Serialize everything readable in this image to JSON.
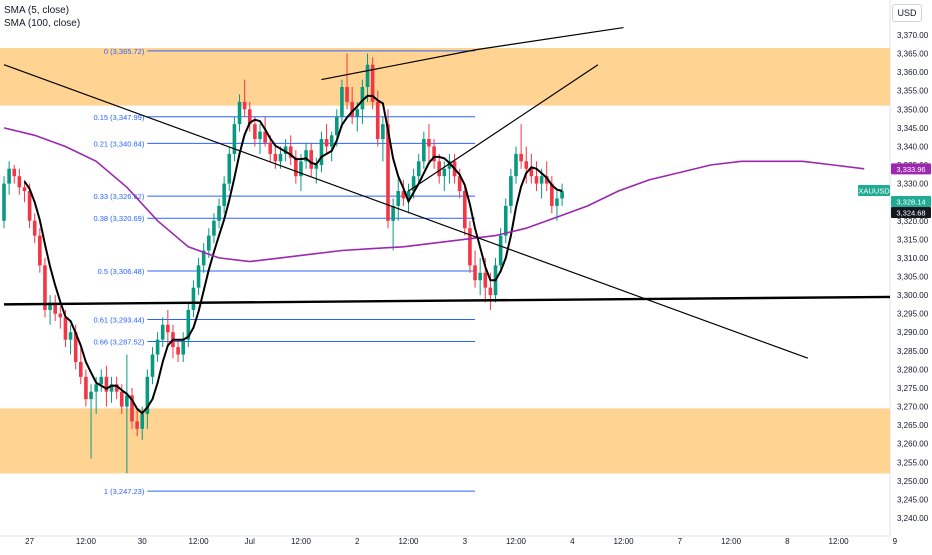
{
  "legend": {
    "sma5": "SMA (5, close)",
    "sma100": "SMA (100, close)"
  },
  "currency": "USD",
  "symbol": "XAUUSD",
  "chart_data": {
    "type": "candlestick",
    "ylim": [
      3238,
      3374
    ],
    "y_ticks": [
      3240,
      3245,
      3250,
      3255,
      3260,
      3265,
      3270,
      3275,
      3280,
      3285,
      3290,
      3295,
      3300,
      3305,
      3310,
      3315,
      3320,
      3325,
      3330,
      3335,
      3340,
      3345,
      3350,
      3355,
      3360,
      3365,
      3370
    ],
    "x_ticks": [
      {
        "label": "27",
        "bar": 5
      },
      {
        "label": "12:00",
        "bar": 16
      },
      {
        "label": "30",
        "bar": 27
      },
      {
        "label": "12:00",
        "bar": 38
      },
      {
        "label": "Jul",
        "bar": 48
      },
      {
        "label": "12:00",
        "bar": 58
      },
      {
        "label": "2",
        "bar": 69
      },
      {
        "label": "12:00",
        "bar": 79
      },
      {
        "label": "3",
        "bar": 90
      },
      {
        "label": "12:00",
        "bar": 100
      },
      {
        "label": "4",
        "bar": 111
      },
      {
        "label": "12:00",
        "bar": 121
      },
      {
        "label": "7",
        "bar": 132
      },
      {
        "label": "12:00",
        "bar": 142
      },
      {
        "label": "8",
        "bar": 153
      },
      {
        "label": "12:00",
        "bar": 163
      },
      {
        "label": "9",
        "bar": 174
      }
    ],
    "price_labels": [
      {
        "text": "3,333.96",
        "value": 3333.96,
        "color": "#9c27b0"
      },
      {
        "text": "XAUUSD",
        "value": 3328.14,
        "color": "#22ab94",
        "name": true
      },
      {
        "text": "3,328.14",
        "value": 3328.14,
        "color": "#22ab94"
      },
      {
        "text": "3,324.68",
        "value": 3324.68,
        "color": "#131722"
      }
    ],
    "fib_levels": [
      {
        "label": "0 (3,365.72)",
        "value": 3365.72
      },
      {
        "label": "0.15 (3,347.99)",
        "value": 3347.99
      },
      {
        "label": "0.21 (3,340.84)",
        "value": 3340.84
      },
      {
        "label": "0.33 (3,326.62)",
        "value": 3326.62
      },
      {
        "label": "0.38 (3,320.69)",
        "value": 3320.69
      },
      {
        "label": "0.5 (3,306.48)",
        "value": 3306.48
      },
      {
        "label": "0.61 (3,293.44)",
        "value": 3293.44
      },
      {
        "label": "0.66 (3,287.52)",
        "value": 3287.52
      },
      {
        "label": "1 (3,247.23)",
        "value": 3247.23
      }
    ],
    "fib_x_range": [
      28,
      92
    ],
    "zones": [
      {
        "y1": 3351,
        "y2": 3366.5
      },
      {
        "y1": 3252,
        "y2": 3269.5
      }
    ],
    "trendlines": [
      {
        "x1": 0,
        "y1": 3362,
        "x2": 157,
        "y2": 3283,
        "w": 1.2
      },
      {
        "x1": 0,
        "y1": 3297.5,
        "x2": 177,
        "y2": 3299.5,
        "w": 2.4
      },
      {
        "x1": 62,
        "y1": 3358,
        "x2": 92,
        "y2": 3366,
        "w": 1.2
      },
      {
        "x1": 92,
        "y1": 3366,
        "x2": 121,
        "y2": 3372,
        "w": 1.2
      },
      {
        "x1": 79,
        "y1": 3328,
        "x2": 116,
        "y2": 3362,
        "w": 1.2
      }
    ],
    "series": [
      {
        "name": "SMA (5, close)",
        "color": "#000000"
      },
      {
        "name": "SMA (100, close)",
        "color": "#9c27b0"
      }
    ],
    "sma100_points": [
      [
        0,
        3345
      ],
      [
        6,
        3343
      ],
      [
        12,
        3340
      ],
      [
        18,
        3336
      ],
      [
        24,
        3329
      ],
      [
        30,
        3320
      ],
      [
        36,
        3313
      ],
      [
        42,
        3310
      ],
      [
        48,
        3309
      ],
      [
        54,
        3310
      ],
      [
        60,
        3311
      ],
      [
        66,
        3312
      ],
      [
        72,
        3312.5
      ],
      [
        78,
        3313
      ],
      [
        84,
        3314
      ],
      [
        90,
        3315
      ],
      [
        96,
        3316
      ],
      [
        102,
        3318
      ],
      [
        108,
        3321
      ],
      [
        114,
        3324
      ],
      [
        120,
        3328
      ],
      [
        126,
        3331
      ],
      [
        132,
        3333
      ],
      [
        138,
        3335
      ],
      [
        144,
        3336
      ],
      [
        150,
        3336
      ],
      [
        156,
        3336
      ],
      [
        162,
        3335
      ],
      [
        168,
        3334
      ]
    ],
    "candles": [
      [
        3320,
        3332,
        3318,
        3330
      ],
      [
        3330,
        3336,
        3327,
        3334
      ],
      [
        3334,
        3335,
        3330,
        3332
      ],
      [
        3332,
        3334,
        3327,
        3329
      ],
      [
        3329,
        3331,
        3325,
        3328
      ],
      [
        3328,
        3330,
        3318,
        3320
      ],
      [
        3320,
        3322,
        3314,
        3316
      ],
      [
        3316,
        3318,
        3306,
        3308
      ],
      [
        3308,
        3310,
        3294,
        3296
      ],
      [
        3296,
        3300,
        3292,
        3298
      ],
      [
        3298,
        3300,
        3293,
        3295
      ],
      [
        3295,
        3297,
        3291,
        3294
      ],
      [
        3294,
        3296,
        3286,
        3288
      ],
      [
        3288,
        3292,
        3284,
        3290
      ],
      [
        3290,
        3292,
        3280,
        3282
      ],
      [
        3282,
        3286,
        3276,
        3278
      ],
      [
        3278,
        3280,
        3270,
        3272
      ],
      [
        3272,
        3276,
        3256,
        3274
      ],
      [
        3274,
        3278,
        3268,
        3276
      ],
      [
        3276,
        3280,
        3274,
        3278
      ],
      [
        3278,
        3281,
        3270,
        3274
      ],
      [
        3274,
        3278,
        3271,
        3276
      ],
      [
        3276,
        3278,
        3272,
        3274
      ],
      [
        3274,
        3276,
        3268,
        3270
      ],
      [
        3270,
        3284,
        3252,
        3273
      ],
      [
        3273,
        3275,
        3264,
        3266
      ],
      [
        3266,
        3269,
        3262,
        3264
      ],
      [
        3264,
        3270,
        3261,
        3268
      ],
      [
        3268,
        3280,
        3264,
        3278
      ],
      [
        3278,
        3286,
        3276,
        3284
      ],
      [
        3284,
        3290,
        3282,
        3288
      ],
      [
        3288,
        3294,
        3286,
        3292
      ],
      [
        3292,
        3296,
        3286,
        3290
      ],
      [
        3290,
        3292,
        3283,
        3286
      ],
      [
        3286,
        3288,
        3282,
        3284
      ],
      [
        3284,
        3290,
        3282,
        3288
      ],
      [
        3288,
        3298,
        3286,
        3296
      ],
      [
        3296,
        3304,
        3294,
        3302
      ],
      [
        3302,
        3310,
        3300,
        3308
      ],
      [
        3308,
        3314,
        3306,
        3312
      ],
      [
        3312,
        3318,
        3310,
        3316
      ],
      [
        3316,
        3322,
        3314,
        3320
      ],
      [
        3320,
        3326,
        3318,
        3324
      ],
      [
        3324,
        3332,
        3322,
        3330
      ],
      [
        3330,
        3340,
        3328,
        3338
      ],
      [
        3338,
        3348,
        3336,
        3346
      ],
      [
        3346,
        3354,
        3344,
        3352
      ],
      [
        3352,
        3358,
        3348,
        3350
      ],
      [
        3350,
        3352,
        3344,
        3346
      ],
      [
        3346,
        3348,
        3340,
        3342
      ],
      [
        3342,
        3346,
        3338,
        3344
      ],
      [
        3344,
        3348,
        3340,
        3341
      ],
      [
        3341,
        3343,
        3336,
        3338
      ],
      [
        3338,
        3340,
        3334,
        3336
      ],
      [
        3336,
        3340,
        3334,
        3338
      ],
      [
        3338,
        3342,
        3336,
        3340
      ],
      [
        3340,
        3343,
        3335,
        3337
      ],
      [
        3337,
        3339,
        3330,
        3332
      ],
      [
        3332,
        3338,
        3328,
        3336
      ],
      [
        3336,
        3341,
        3334,
        3339
      ],
      [
        3339,
        3341,
        3332,
        3334
      ],
      [
        3334,
        3337,
        3330,
        3335
      ],
      [
        3335,
        3344,
        3333,
        3342
      ],
      [
        3342,
        3346,
        3338,
        3340
      ],
      [
        3340,
        3344,
        3336,
        3343
      ],
      [
        3343,
        3350,
        3340,
        3348
      ],
      [
        3348,
        3358,
        3345,
        3356
      ],
      [
        3356,
        3365,
        3350,
        3352
      ],
      [
        3352,
        3356,
        3346,
        3348
      ],
      [
        3348,
        3352,
        3344,
        3350
      ],
      [
        3350,
        3358,
        3346,
        3356
      ],
      [
        3356,
        3365,
        3352,
        3362
      ],
      [
        3362,
        3364,
        3350,
        3352
      ],
      [
        3352,
        3355,
        3340,
        3342
      ],
      [
        3342,
        3348,
        3336,
        3346
      ],
      [
        3346,
        3350,
        3318,
        3320
      ],
      [
        3320,
        3326,
        3312,
        3324
      ],
      [
        3324,
        3332,
        3320,
        3328
      ],
      [
        3328,
        3331,
        3324,
        3326
      ],
      [
        3326,
        3330,
        3322,
        3328
      ],
      [
        3328,
        3334,
        3326,
        3332
      ],
      [
        3332,
        3338,
        3330,
        3336
      ],
      [
        3336,
        3344,
        3334,
        3342
      ],
      [
        3342,
        3346,
        3336,
        3340
      ],
      [
        3340,
        3342,
        3334,
        3336
      ],
      [
        3336,
        3338,
        3330,
        3332
      ],
      [
        3332,
        3336,
        3328,
        3334
      ],
      [
        3334,
        3338,
        3330,
        3336
      ],
      [
        3336,
        3338,
        3330,
        3332
      ],
      [
        3332,
        3334,
        3326,
        3328
      ],
      [
        3328,
        3330,
        3316,
        3318
      ],
      [
        3318,
        3320,
        3306,
        3308
      ],
      [
        3308,
        3312,
        3302,
        3304
      ],
      [
        3304,
        3310,
        3300,
        3306
      ],
      [
        3306,
        3310,
        3298,
        3302
      ],
      [
        3302,
        3306,
        3296,
        3300
      ],
      [
        3300,
        3310,
        3298,
        3308
      ],
      [
        3308,
        3318,
        3306,
        3316
      ],
      [
        3316,
        3326,
        3314,
        3324
      ],
      [
        3324,
        3334,
        3322,
        3332
      ],
      [
        3332,
        3340,
        3330,
        3338
      ],
      [
        3338,
        3346,
        3334,
        3336
      ],
      [
        3336,
        3340,
        3330,
        3334
      ],
      [
        3334,
        3338,
        3330,
        3332
      ],
      [
        3332,
        3336,
        3328,
        3330
      ],
      [
        3330,
        3334,
        3326,
        3332
      ],
      [
        3332,
        3336,
        3328,
        3330
      ],
      [
        3330,
        3332,
        3322,
        3324
      ],
      [
        3324,
        3328,
        3320,
        3326
      ],
      [
        3326,
        3330,
        3324,
        3328
      ]
    ],
    "candle_x_range": [
      0,
      177
    ]
  }
}
